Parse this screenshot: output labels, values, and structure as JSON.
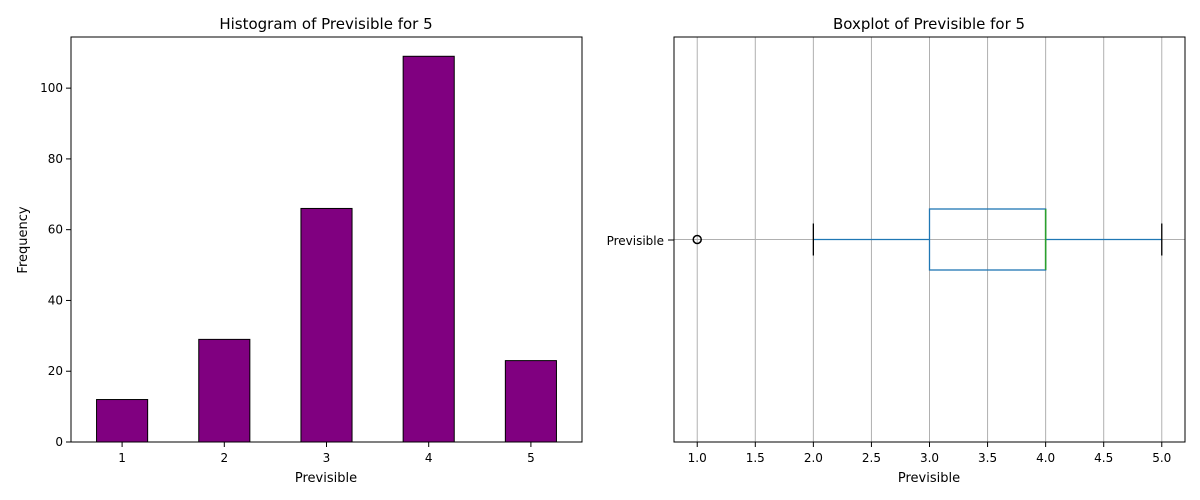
{
  "chart_data": [
    {
      "type": "bar",
      "title": "Histogram of Previsible for 5",
      "xlabel": "Previsible",
      "ylabel": "Frequency",
      "categories": [
        "1",
        "2",
        "3",
        "4",
        "5"
      ],
      "values": [
        12,
        29,
        66,
        109,
        23
      ],
      "ylim": [
        0,
        114.45
      ],
      "yticks": [
        "0",
        "20",
        "40",
        "60",
        "80",
        "100"
      ],
      "bar_color": "#800080",
      "edge_color": "#000000",
      "grid": false
    },
    {
      "type": "boxplot",
      "title": "Boxplot of Previsible for 5",
      "xlabel": "Previsible",
      "category_label": "Previsible",
      "orientation": "horizontal",
      "whisker_low": 2.0,
      "q1": 3.0,
      "median": 4.0,
      "q3": 4.0,
      "whisker_high": 5.0,
      "outliers": [
        1.0
      ],
      "xlim": [
        0.8,
        5.2
      ],
      "xticks": [
        "1.0",
        "1.5",
        "2.0",
        "2.5",
        "3.0",
        "3.5",
        "4.0",
        "4.5",
        "5.0"
      ],
      "box_color": "#1f77b4",
      "median_color": "#2ca02c",
      "grid": true
    }
  ]
}
